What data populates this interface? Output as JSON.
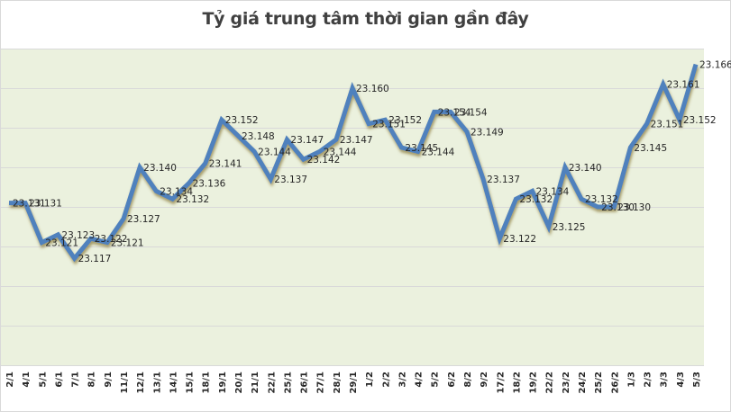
{
  "chart": {
    "title": "Tỷ giá trung tâm thời gian gần đây",
    "colors": {
      "line": "#4f81bd",
      "shadow": "#8a7a3a",
      "plot_bg": "#ebf1de",
      "grid": "#d9d9d9",
      "text": "#262626",
      "title": "#404040"
    }
  },
  "chart_data": {
    "type": "line",
    "title": "Tỷ giá trung tâm thời gian gần đây",
    "xlabel": "",
    "ylabel": "",
    "ylim": [
      23.09,
      23.17
    ],
    "grid": true,
    "legend": "none",
    "categories": [
      "2/1",
      "4/1",
      "5/1",
      "6/1",
      "7/1",
      "8/1",
      "9/1",
      "11/1",
      "12/1",
      "13/1",
      "14/1",
      "15/1",
      "18/1",
      "19/1",
      "20/1",
      "21/1",
      "22/1",
      "25/1",
      "26/1",
      "27/1",
      "28/1",
      "29/1",
      "1/2",
      "2/2",
      "3/2",
      "4/2",
      "5/2",
      "6/2",
      "8/2",
      "9/2",
      "17/2",
      "18/2",
      "19/2",
      "22/2",
      "23/2",
      "24/2",
      "25/2",
      "26/2",
      "1/3",
      "2/3",
      "3/3",
      "4/3",
      "5/3"
    ],
    "series": [
      {
        "name": "Tỷ giá trung tâm",
        "values": [
          23.131,
          23.131,
          23.121,
          23.123,
          23.117,
          23.122,
          23.121,
          23.127,
          23.14,
          23.134,
          23.132,
          23.136,
          23.141,
          23.152,
          23.148,
          23.144,
          23.137,
          23.147,
          23.142,
          23.144,
          23.147,
          23.16,
          23.151,
          23.152,
          23.145,
          23.144,
          23.154,
          23.154,
          23.149,
          23.137,
          23.122,
          23.132,
          23.134,
          23.125,
          23.14,
          23.132,
          23.13,
          23.13,
          23.145,
          23.151,
          23.161,
          23.152,
          23.166
        ],
        "labels": [
          "23.131",
          "23.131",
          "23.121",
          "23.123",
          "23.117",
          "23.122",
          "23.121",
          "23.127",
          "23.140",
          "23.134",
          "23.132",
          "23.136",
          "23.141",
          "23.152",
          "23.148",
          "23.144",
          "23.137",
          "23.147",
          "23.142",
          "23.144",
          "23.147",
          "23.160",
          "23.151",
          "23.152",
          "23.145",
          "23.144",
          "23.154",
          "23.154",
          "23.149",
          "23.137",
          "23.122",
          "23.132",
          "23.134",
          "23.125",
          "23.140",
          "23.132",
          "23.130",
          "23.130",
          "23.145",
          "23.151",
          "23.161",
          "23.152",
          "23.166"
        ]
      }
    ]
  }
}
